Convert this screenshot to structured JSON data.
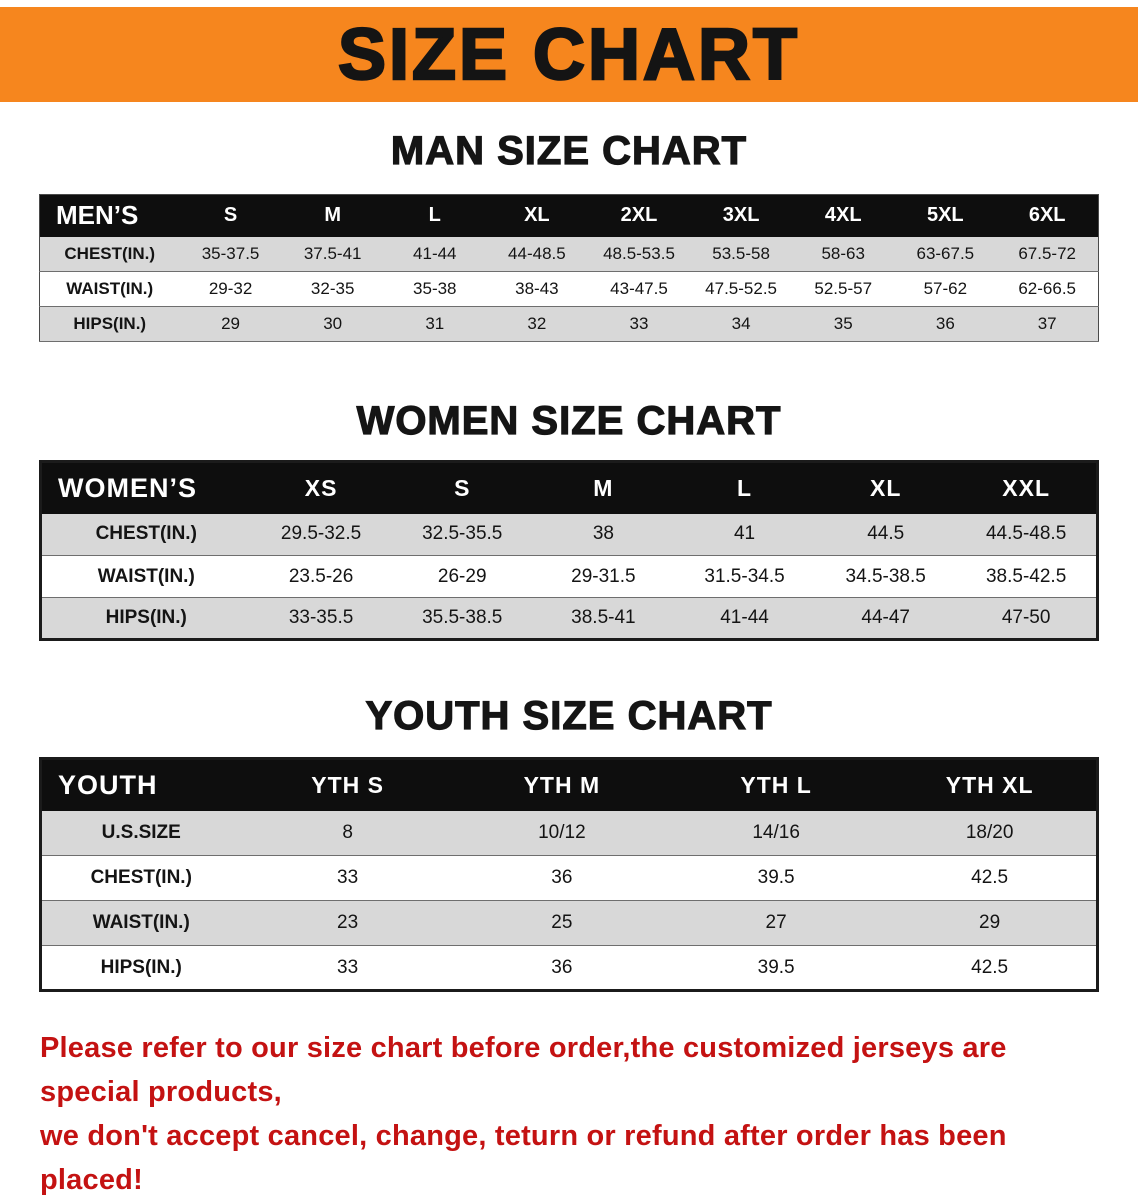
{
  "banner": {
    "title": "SIZE CHART",
    "bg_color": "#F6861E"
  },
  "sections": [
    {
      "id": "men",
      "heading": "MAN SIZE CHART",
      "table": {
        "header": [
          "MEN’S",
          "S",
          "M",
          "L",
          "XL",
          "2XL",
          "3XL",
          "4XL",
          "5XL",
          "6XL"
        ],
        "rows": [
          [
            "CHEST(IN.)",
            "35-37.5",
            "37.5-41",
            "41-44",
            "44-48.5",
            "48.5-53.5",
            "53.5-58",
            "58-63",
            "63-67.5",
            "67.5-72"
          ],
          [
            "WAIST(IN.)",
            "29-32",
            "32-35",
            "35-38",
            "38-43",
            "43-47.5",
            "47.5-52.5",
            "52.5-57",
            "57-62",
            "62-66.5"
          ],
          [
            "HIPS(IN.)",
            "29",
            "30",
            "31",
            "32",
            "33",
            "34",
            "35",
            "36",
            "37"
          ]
        ]
      }
    },
    {
      "id": "women",
      "heading": "WOMEN SIZE CHART",
      "table": {
        "header": [
          "WOMEN’S",
          "XS",
          "S",
          "M",
          "L",
          "XL",
          "XXL"
        ],
        "rows": [
          [
            "CHEST(IN.)",
            "29.5-32.5",
            "32.5-35.5",
            "38",
            "41",
            "44.5",
            "44.5-48.5"
          ],
          [
            "WAIST(IN.)",
            "23.5-26",
            "26-29",
            "29-31.5",
            "31.5-34.5",
            "34.5-38.5",
            "38.5-42.5"
          ],
          [
            "HIPS(IN.)",
            "33-35.5",
            "35.5-38.5",
            "38.5-41",
            "41-44",
            "44-47",
            "47-50"
          ]
        ]
      }
    },
    {
      "id": "youth",
      "heading": "YOUTH SIZE CHART",
      "table": {
        "header": [
          "YOUTH",
          "YTH S",
          "YTH M",
          "YTH L",
          "YTH XL"
        ],
        "rows": [
          [
            "U.S.SIZE",
            "8",
            "10/12",
            "14/16",
            "18/20"
          ],
          [
            "CHEST(IN.)",
            "33",
            "36",
            "39.5",
            "42.5"
          ],
          [
            "WAIST(IN.)",
            "23",
            "25",
            "27",
            "29"
          ],
          [
            "HIPS(IN.)",
            "33",
            "36",
            "39.5",
            "42.5"
          ]
        ]
      }
    }
  ],
  "footer": {
    "line1": "Please refer to our size chart before order,the customized jerseys are special products,",
    "line2": "we don't accept cancel, change, teturn or refund after order has been placed!",
    "text_color": "#C41212"
  }
}
